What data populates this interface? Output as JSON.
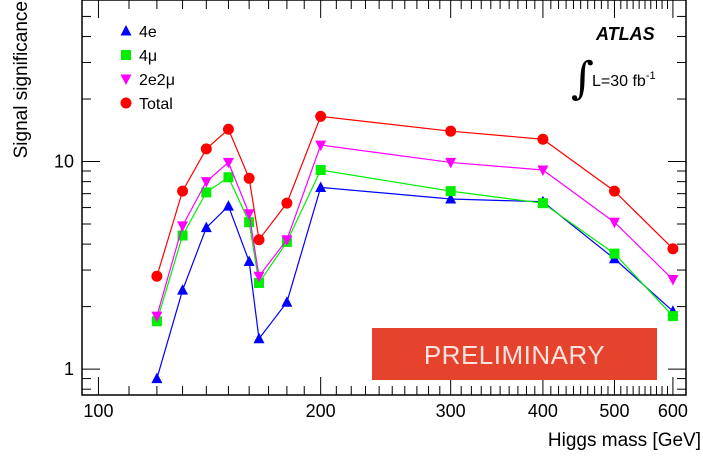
{
  "chart_data": {
    "type": "line",
    "title": "",
    "xlabel": "Higgs mass [GeV]",
    "ylabel": "Signal significance",
    "xscale": "log",
    "yscale": "log",
    "xlim": [
      95,
      625
    ],
    "ylim": [
      0.75,
      60
    ],
    "x_ticks": [
      100,
      200,
      300,
      400,
      500,
      600
    ],
    "x_tick_labels": [
      "100",
      "200",
      "300",
      "400",
      "500",
      "600"
    ],
    "y_ticks": [
      1,
      10
    ],
    "y_tick_labels": [
      "1",
      "10"
    ],
    "grid": false,
    "legend_position": "top-left",
    "series": [
      {
        "name": "4e",
        "marker": "triangle-up",
        "color": "#0000ff",
        "x": [
          120,
          130,
          140,
          150,
          160,
          165,
          180,
          200,
          300,
          400,
          500,
          600
        ],
        "y": [
          0.9,
          2.4,
          4.8,
          6.1,
          3.3,
          1.4,
          2.1,
          7.5,
          6.6,
          6.4,
          3.4,
          1.9
        ]
      },
      {
        "name": "4μ",
        "marker": "square",
        "color": "#00ee00",
        "x": [
          120,
          130,
          140,
          150,
          160,
          165,
          180,
          200,
          300,
          400,
          500,
          600
        ],
        "y": [
          1.7,
          4.4,
          7.1,
          8.4,
          5.1,
          2.6,
          4.1,
          9.1,
          7.2,
          6.3,
          3.6,
          1.8
        ]
      },
      {
        "name": "2e2μ",
        "marker": "triangle-down",
        "color": "#ff00ff",
        "x": [
          120,
          130,
          140,
          150,
          160,
          165,
          180,
          200,
          300,
          400,
          500,
          600
        ],
        "y": [
          1.8,
          4.9,
          8.0,
          9.9,
          5.6,
          2.8,
          4.2,
          12.0,
          9.9,
          9.1,
          5.1,
          2.7
        ]
      },
      {
        "name": "Total",
        "marker": "circle",
        "color": "#ff0000",
        "x": [
          120,
          130,
          140,
          150,
          160,
          165,
          180,
          200,
          300,
          400,
          500,
          600
        ],
        "y": [
          2.8,
          7.2,
          11.5,
          14.3,
          8.3,
          4.2,
          6.3,
          16.5,
          14.0,
          12.8,
          7.2,
          3.8
        ]
      }
    ],
    "annotations": {
      "experiment": "ATLAS",
      "integral_sign": "∫",
      "luminosity": "L=30 fb",
      "luminosity_exp": "-1",
      "banner": "PRELIMINARY",
      "banner_color": "#e5432e"
    }
  }
}
